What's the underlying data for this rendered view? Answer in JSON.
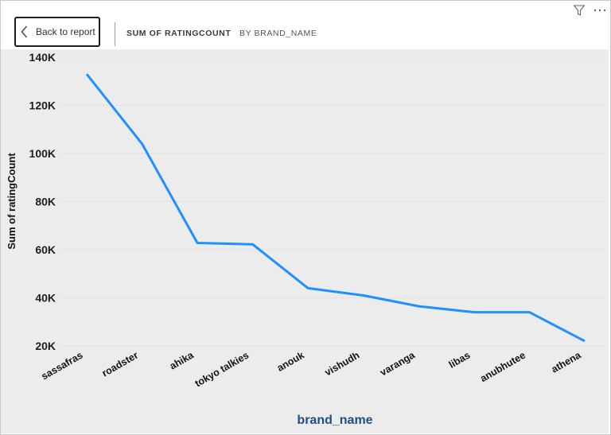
{
  "header": {
    "back_label": "Back to report",
    "title_measure": "SUM OF RATINGCOUNT",
    "title_by": "BY BRAND_NAME",
    "icons": [
      "chevron-left-icon",
      "filter-icon",
      "more-options-icon"
    ]
  },
  "colors": {
    "line": "#1E90FF",
    "plot_background": "#ECECEC",
    "axis_title_x": "#1E4F86"
  },
  "chart_data": {
    "type": "line",
    "title": "Sum of ratingCount by brand_name",
    "xlabel": "brand_name",
    "ylabel": "Sum of ratingCount",
    "categories": [
      "sassafras",
      "roadster",
      "ahika",
      "tokyo talkies",
      "anouk",
      "vishudh",
      "varanga",
      "libas",
      "anubhutee",
      "athena"
    ],
    "series": [
      {
        "name": "Sum of ratingCount",
        "values": [
          133000,
          104000,
          62800,
          62200,
          44000,
          41000,
          36500,
          34000,
          34000,
          22000
        ]
      }
    ],
    "yticks": [
      20000,
      40000,
      60000,
      80000,
      100000,
      120000,
      140000
    ],
    "ytick_labels": [
      "20K",
      "40K",
      "60K",
      "80K",
      "100K",
      "120K",
      "140K"
    ],
    "ylim": [
      20000,
      140000
    ],
    "grid": "horizontal-dotted",
    "legend": "none"
  }
}
